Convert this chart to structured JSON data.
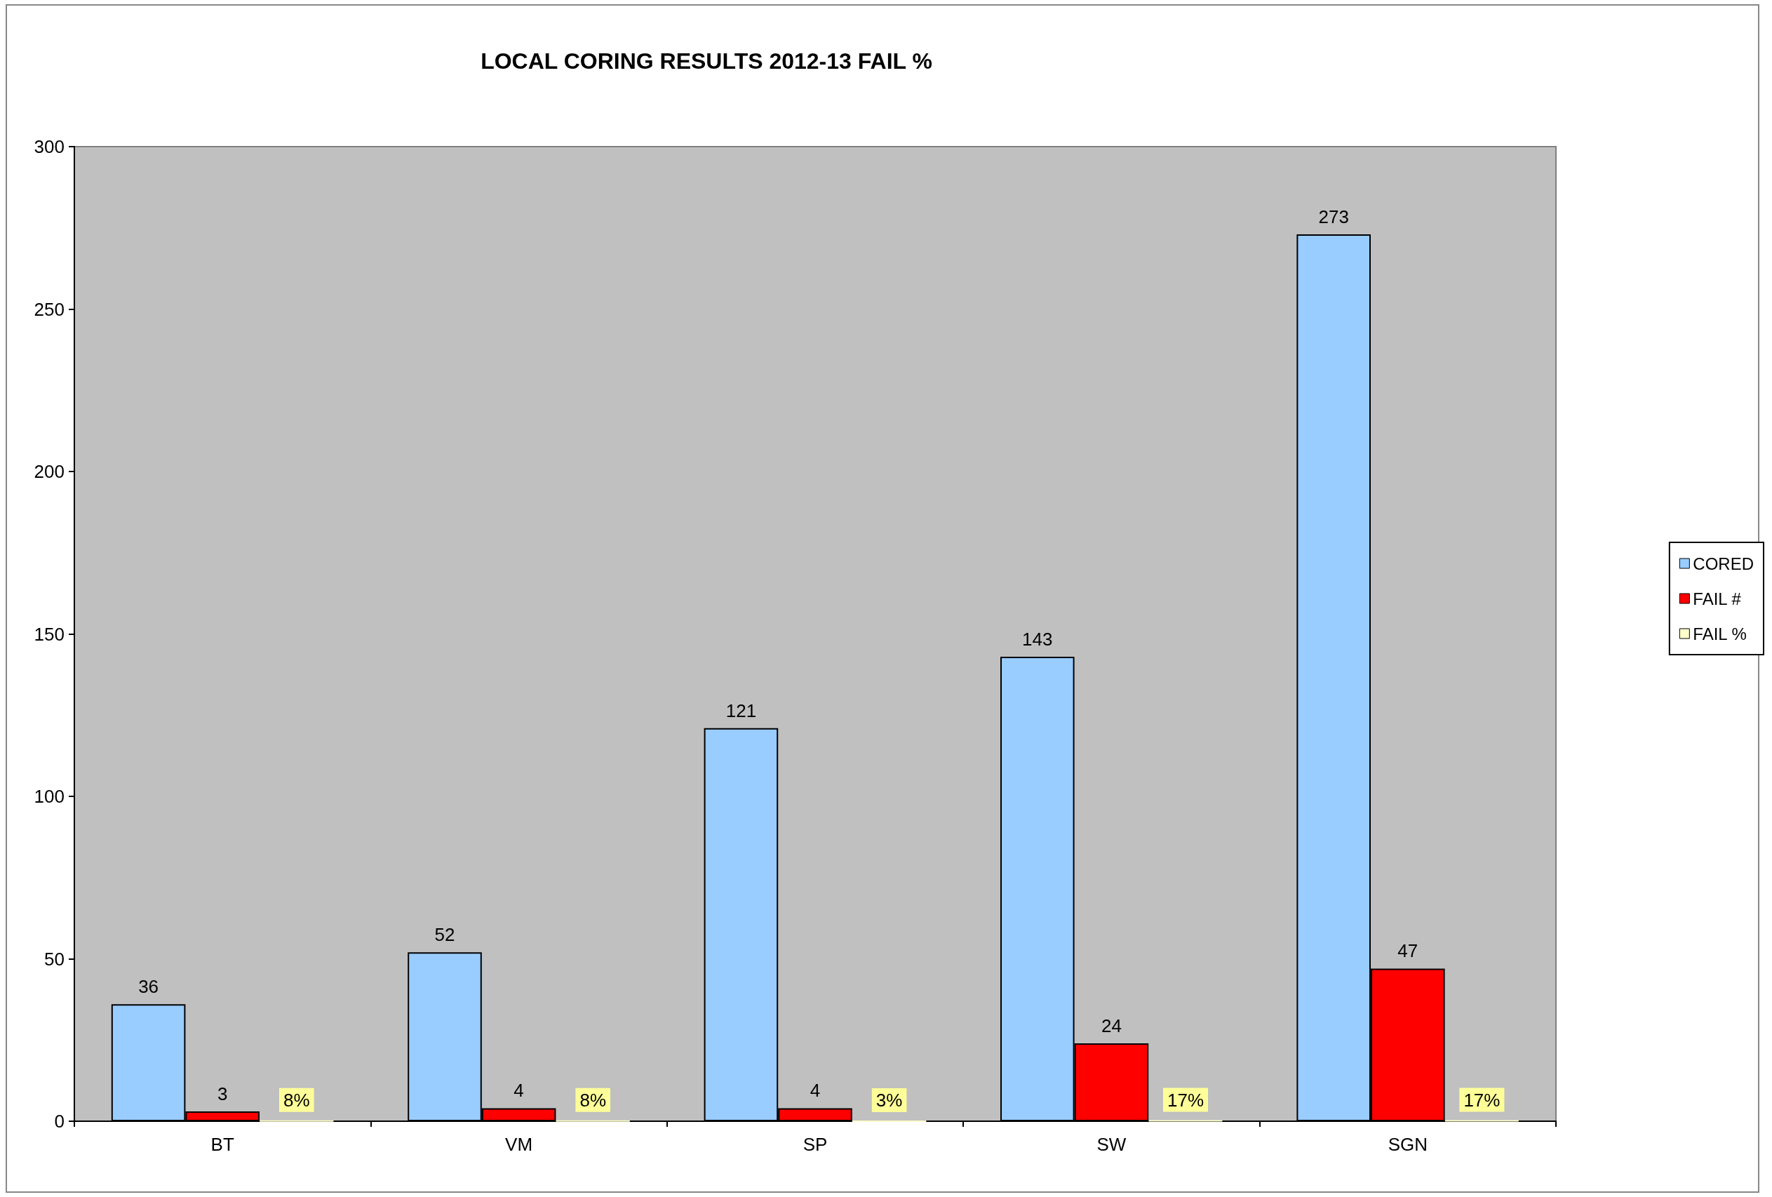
{
  "chart_data": {
    "type": "bar",
    "title": "LOCAL CORING RESULTS 2012-13 FAIL %",
    "categories": [
      "BT",
      "VM",
      "SP",
      "SW",
      "SGN"
    ],
    "series": [
      {
        "name": "CORED",
        "color": "#99ccff",
        "values": [
          36,
          52,
          121,
          143,
          273
        ],
        "value_labels": [
          "36",
          "52",
          "121",
          "143",
          "273"
        ]
      },
      {
        "name": "FAIL #",
        "color": "#ff0000",
        "values": [
          3,
          4,
          4,
          24,
          47
        ],
        "value_labels": [
          "3",
          "4",
          "4",
          "24",
          "47"
        ]
      },
      {
        "name": "FAIL %",
        "color": "#ffffcc",
        "values": [
          0.08,
          0.08,
          0.03,
          0.17,
          0.17
        ],
        "value_labels": [
          "8%",
          "8%",
          "3%",
          "17%",
          "17%"
        ]
      }
    ],
    "ylim": [
      0,
      300
    ],
    "yticks": [
      0,
      50,
      100,
      150,
      200,
      250,
      300
    ],
    "grid": false,
    "legend": "right"
  }
}
